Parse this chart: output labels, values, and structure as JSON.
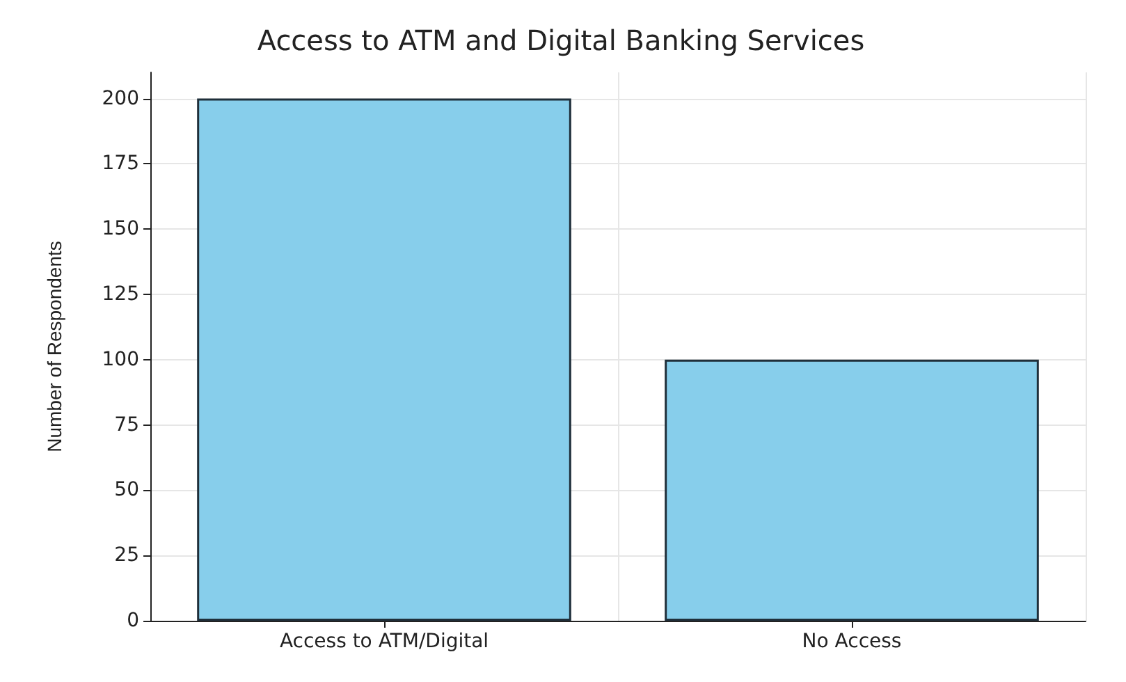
{
  "chart_data": {
    "type": "bar",
    "title": "Access to ATM and Digital Banking Services",
    "ylabel": "Number of Respondents",
    "categories": [
      "Access to ATM/Digital",
      "No Access"
    ],
    "values": [
      200,
      100
    ],
    "color": "#87ceeb",
    "ylim": [
      0,
      210
    ],
    "yticks": [
      0,
      25,
      50,
      75,
      100,
      125,
      150,
      175,
      200
    ],
    "grid": true
  }
}
